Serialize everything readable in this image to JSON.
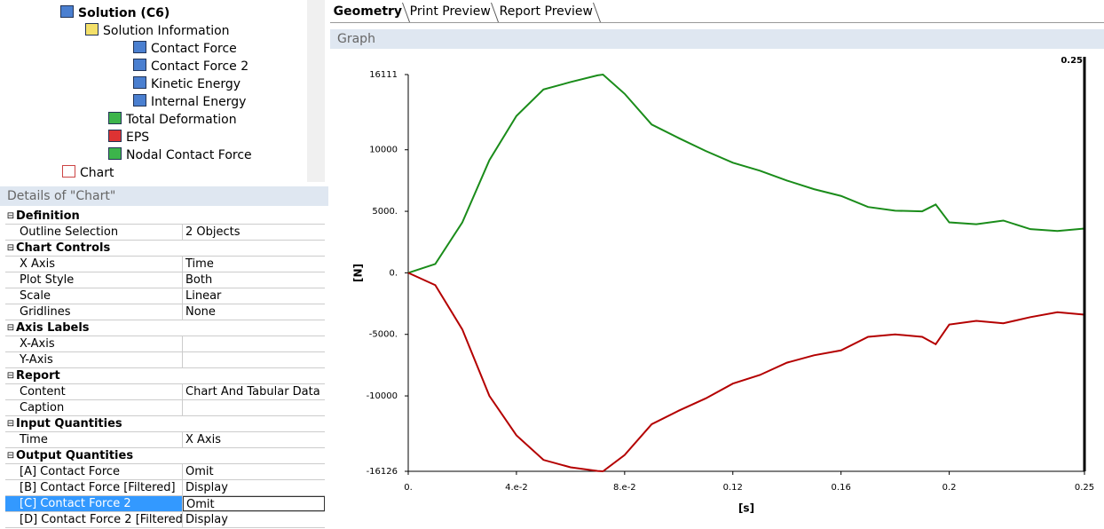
{
  "tree": {
    "items": [
      "Solution (C6)",
      "Solution Information",
      "Contact Force",
      "Contact Force 2",
      "Kinetic Energy",
      "Internal Energy",
      "Total Deformation",
      "EPS",
      "Nodal Contact Force",
      "Chart"
    ]
  },
  "details": {
    "title": "Details of \"Chart\"",
    "sections": [
      {
        "name": "Definition",
        "rows": [
          {
            "label": "Outline Selection",
            "value": "2 Objects"
          }
        ]
      },
      {
        "name": "Chart Controls",
        "rows": [
          {
            "label": "X Axis",
            "value": "Time"
          },
          {
            "label": "Plot Style",
            "value": "Both"
          },
          {
            "label": "Scale",
            "value": "Linear"
          },
          {
            "label": "Gridlines",
            "value": "None"
          }
        ]
      },
      {
        "name": "Axis Labels",
        "rows": [
          {
            "label": "X-Axis"
          },
          {
            "label": "Y-Axis"
          }
        ]
      },
      {
        "name": "Report",
        "rows": [
          {
            "label": "Content",
            "value": "Chart And Tabular Data"
          },
          {
            "label": "Caption"
          }
        ]
      },
      {
        "name": "Input Quantities",
        "rows": [
          {
            "label": "Time",
            "value": "X Axis"
          }
        ]
      },
      {
        "name": "Output Quantities",
        "rows": [
          {
            "label": "[A] Contact Force",
            "value": "Omit"
          },
          {
            "label": "[B] Contact Force [Filtered]",
            "value": "Display"
          },
          {
            "label": "[C] Contact Force 2",
            "value": "Omit",
            "selected": true
          },
          {
            "label": "[D] Contact Force 2 [Filtered]",
            "value": "Display"
          }
        ]
      }
    ]
  },
  "tabs": [
    "Geometry",
    "Print Preview",
    "Report Preview"
  ],
  "graph_title": "Graph",
  "chart_data": {
    "type": "line",
    "xlabel": "[s]",
    "ylabel": "[N]",
    "x": [
      0,
      0.01,
      0.02,
      0.03,
      0.04,
      0.05,
      0.06,
      0.07,
      0.072,
      0.08,
      0.09,
      0.1,
      0.11,
      0.12,
      0.13,
      0.14,
      0.15,
      0.16,
      0.17,
      0.18,
      0.19,
      0.195,
      0.2,
      0.21,
      0.22,
      0.23,
      0.24,
      0.25
    ],
    "series": [
      {
        "color": "#1a8c1a",
        "values": [
          0,
          720,
          4100,
          9150,
          12750,
          14900,
          15500,
          16050,
          16111,
          14550,
          12050,
          10950,
          9900,
          8950,
          8300,
          7500,
          6800,
          6250,
          5350,
          5050,
          5000,
          5550,
          4100,
          3950,
          4250,
          3550,
          3400,
          3600
        ]
      },
      {
        "color": "#b40000",
        "values": [
          0,
          -1000,
          -4600,
          -10000,
          -13200,
          -15200,
          -15800,
          -16100,
          -16126,
          -14800,
          -12300,
          -11200,
          -10200,
          -9000,
          -8300,
          -7300,
          -6700,
          -6300,
          -5200,
          -5000,
          -5200,
          -5800,
          -4200,
          -3900,
          -4100,
          -3600,
          -3200,
          -3400
        ]
      }
    ],
    "xlim": [
      0,
      0.25
    ],
    "ylim": [
      -16126,
      16111
    ],
    "xticks": [
      {
        "value": 0,
        "label": "0."
      },
      {
        "value": 0.04,
        "label": "4.e-2"
      },
      {
        "value": 0.08,
        "label": "8.e-2"
      },
      0.12,
      0.16,
      0.2,
      0.25
    ],
    "yticks": [
      16111,
      10000,
      {
        "value": 5000,
        "label": "5000."
      },
      {
        "value": 0,
        "label": "0."
      },
      {
        "value": -5000,
        "label": "-5000."
      },
      -10000,
      -16126
    ],
    "cursor": 0.25
  }
}
